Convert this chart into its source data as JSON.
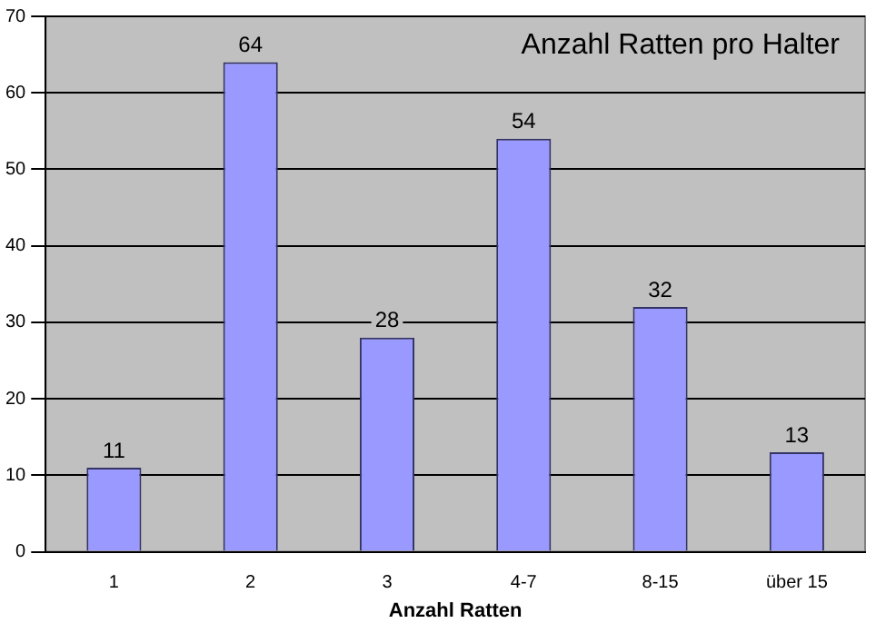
{
  "chart_data": {
    "type": "bar",
    "title": "Anzahl Ratten pro Halter",
    "xlabel": "Anzahl Ratten",
    "categories": [
      "1",
      "2",
      "3",
      "4-7",
      "8-15",
      "über 15"
    ],
    "values": [
      11,
      64,
      28,
      54,
      32,
      13
    ],
    "color": "#9999ff",
    "ylim": [
      0,
      70
    ],
    "yticks": [
      0,
      10,
      20,
      30,
      40,
      50,
      60,
      70
    ],
    "grid": "y",
    "legend": false,
    "data_labels": true
  }
}
